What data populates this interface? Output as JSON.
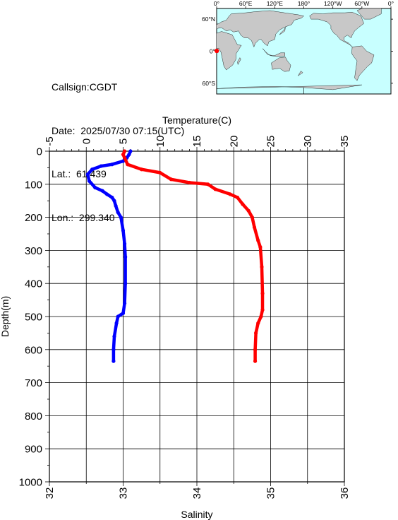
{
  "info": {
    "callsign": "Callsign:CGDT",
    "date": "Date:  2025/07/30 07:15(UTC)",
    "lat": "Lat.:  61.439",
    "lon": "Lon.:  299.340"
  },
  "map": {
    "top_labels": [
      "0°",
      "60°E",
      "120°E",
      "180°",
      "120°W",
      "60°W",
      "0°"
    ],
    "side_labels": [
      "60°N",
      "0°",
      "60°S"
    ],
    "ocean_color": "#c8ffff",
    "land_color": "#c8c8c8",
    "marker_color": "#ff0000"
  },
  "chart_data": {
    "type": "line",
    "top_axis": {
      "label": "Temperature(C)",
      "range": [
        -5,
        35
      ],
      "ticks": [
        -5,
        0,
        5,
        10,
        15,
        20,
        25,
        30,
        35
      ]
    },
    "bottom_axis": {
      "label": "Salinity",
      "range": [
        32,
        36
      ],
      "ticks": [
        32,
        33,
        34,
        35,
        36
      ]
    },
    "y_axis": {
      "label": "Depth(m)",
      "range": [
        0,
        1000
      ],
      "inverted": true,
      "ticks": [
        0,
        100,
        200,
        300,
        400,
        500,
        600,
        700,
        800,
        900,
        1000
      ]
    },
    "grid": true,
    "series": [
      {
        "axis": "salinity",
        "color": "#0000ff",
        "points": [
          [
            33.1,
            0
          ],
          [
            33.08,
            10
          ],
          [
            33.05,
            20
          ],
          [
            33.0,
            30
          ],
          [
            32.85,
            40
          ],
          [
            32.7,
            45
          ],
          [
            32.58,
            55
          ],
          [
            32.52,
            70
          ],
          [
            32.54,
            90
          ],
          [
            32.62,
            110
          ],
          [
            32.72,
            120
          ],
          [
            32.78,
            130
          ],
          [
            32.85,
            140
          ],
          [
            32.88,
            150
          ],
          [
            32.9,
            165
          ],
          [
            32.93,
            185
          ],
          [
            32.97,
            200
          ],
          [
            33.0,
            240
          ],
          [
            33.02,
            280
          ],
          [
            33.03,
            320
          ],
          [
            33.03,
            400
          ],
          [
            33.02,
            460
          ],
          [
            33.0,
            490
          ],
          [
            32.93,
            500
          ],
          [
            32.91,
            520
          ],
          [
            32.88,
            560
          ],
          [
            32.87,
            600
          ],
          [
            32.87,
            635
          ]
        ]
      },
      {
        "axis": "temperature",
        "color": "#ff0000",
        "points": [
          [
            5.2,
            0
          ],
          [
            5.0,
            10
          ],
          [
            5.2,
            20
          ],
          [
            5.6,
            40
          ],
          [
            7.5,
            55
          ],
          [
            10.0,
            65
          ],
          [
            11.5,
            85
          ],
          [
            14.0,
            95
          ],
          [
            16.5,
            100
          ],
          [
            17.5,
            115
          ],
          [
            19.5,
            130
          ],
          [
            20.5,
            140
          ],
          [
            21.2,
            160
          ],
          [
            22.0,
            180
          ],
          [
            22.5,
            200
          ],
          [
            22.8,
            230
          ],
          [
            23.3,
            270
          ],
          [
            23.6,
            290
          ],
          [
            23.8,
            350
          ],
          [
            23.9,
            430
          ],
          [
            23.9,
            480
          ],
          [
            23.7,
            500
          ],
          [
            23.3,
            520
          ],
          [
            23.0,
            550
          ],
          [
            22.9,
            600
          ],
          [
            22.9,
            635
          ]
        ]
      }
    ]
  }
}
